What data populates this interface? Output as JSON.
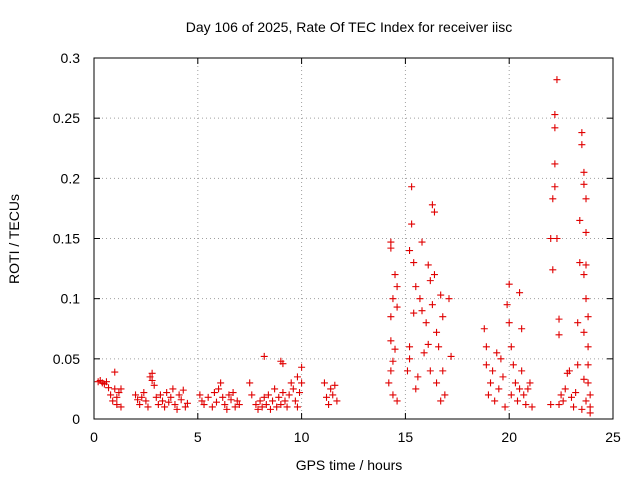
{
  "chart_data": {
    "type": "scatter",
    "title": "Day 106 of 2025, Rate Of TEC Index for receiver iisc",
    "xlabel": "GPS time / hours",
    "ylabel": "ROTI / TECUs",
    "xlim": [
      0,
      25
    ],
    "ylim": [
      0,
      0.3
    ],
    "x_ticks": [
      0,
      5,
      10,
      15,
      20,
      25
    ],
    "x_tick_labels": [
      "0",
      "5",
      "10",
      "15",
      "20",
      "25"
    ],
    "y_ticks": [
      0,
      0.05,
      0.1,
      0.15,
      0.2,
      0.25,
      0.3
    ],
    "y_tick_labels": [
      "0",
      "0.05",
      "0.1",
      "0.15",
      "0.2",
      "0.25",
      "0.3"
    ],
    "grid": true,
    "marker": "+",
    "color": "#e00000",
    "series": [
      {
        "name": "ROTI",
        "points": [
          [
            0.2,
            0.031
          ],
          [
            0.3,
            0.032
          ],
          [
            0.4,
            0.03
          ],
          [
            0.5,
            0.029
          ],
          [
            0.6,
            0.031
          ],
          [
            0.7,
            0.026
          ],
          [
            0.8,
            0.02
          ],
          [
            0.9,
            0.015
          ],
          [
            1.0,
            0.025
          ],
          [
            1.0,
            0.039
          ],
          [
            1.1,
            0.018
          ],
          [
            1.1,
            0.012
          ],
          [
            1.2,
            0.022
          ],
          [
            1.3,
            0.01
          ],
          [
            1.3,
            0.025
          ],
          [
            2.0,
            0.02
          ],
          [
            2.1,
            0.016
          ],
          [
            2.2,
            0.012
          ],
          [
            2.3,
            0.018
          ],
          [
            2.4,
            0.022
          ],
          [
            2.5,
            0.015
          ],
          [
            2.6,
            0.01
          ],
          [
            2.7,
            0.035
          ],
          [
            2.8,
            0.038
          ],
          [
            2.8,
            0.032
          ],
          [
            2.9,
            0.028
          ],
          [
            3.0,
            0.018
          ],
          [
            3.1,
            0.012
          ],
          [
            3.2,
            0.02
          ],
          [
            3.3,
            0.015
          ],
          [
            3.4,
            0.01
          ],
          [
            3.5,
            0.022
          ],
          [
            3.6,
            0.014
          ],
          [
            3.7,
            0.018
          ],
          [
            3.8,
            0.025
          ],
          [
            3.9,
            0.012
          ],
          [
            4.0,
            0.008
          ],
          [
            4.1,
            0.02
          ],
          [
            4.2,
            0.016
          ],
          [
            4.3,
            0.024
          ],
          [
            4.4,
            0.01
          ],
          [
            4.5,
            0.013
          ],
          [
            5.1,
            0.02
          ],
          [
            5.2,
            0.015
          ],
          [
            5.3,
            0.012
          ],
          [
            5.5,
            0.018
          ],
          [
            5.7,
            0.01
          ],
          [
            5.8,
            0.022
          ],
          [
            5.9,
            0.014
          ],
          [
            6.0,
            0.025
          ],
          [
            6.1,
            0.03
          ],
          [
            6.2,
            0.018
          ],
          [
            6.3,
            0.012
          ],
          [
            6.4,
            0.008
          ],
          [
            6.5,
            0.02
          ],
          [
            6.6,
            0.016
          ],
          [
            6.7,
            0.022
          ],
          [
            6.8,
            0.01
          ],
          [
            6.9,
            0.015
          ],
          [
            7.0,
            0.012
          ],
          [
            7.5,
            0.03
          ],
          [
            7.6,
            0.02
          ],
          [
            7.8,
            0.012
          ],
          [
            7.9,
            0.008
          ],
          [
            8.0,
            0.015
          ],
          [
            8.1,
            0.01
          ],
          [
            8.2,
            0.018
          ],
          [
            8.2,
            0.052
          ],
          [
            8.3,
            0.012
          ],
          [
            8.4,
            0.02
          ],
          [
            8.5,
            0.008
          ],
          [
            8.6,
            0.015
          ],
          [
            8.7,
            0.025
          ],
          [
            8.8,
            0.01
          ],
          [
            8.9,
            0.018
          ],
          [
            9.0,
            0.012
          ],
          [
            9.0,
            0.048
          ],
          [
            9.1,
            0.046
          ],
          [
            9.1,
            0.022
          ],
          [
            9.2,
            0.015
          ],
          [
            9.3,
            0.01
          ],
          [
            9.4,
            0.02
          ],
          [
            9.5,
            0.03
          ],
          [
            9.6,
            0.025
          ],
          [
            9.7,
            0.015
          ],
          [
            9.8,
            0.01
          ],
          [
            9.8,
            0.035
          ],
          [
            9.9,
            0.022
          ],
          [
            10.0,
            0.03
          ],
          [
            10.0,
            0.043
          ],
          [
            11.1,
            0.03
          ],
          [
            11.2,
            0.018
          ],
          [
            11.3,
            0.012
          ],
          [
            11.4,
            0.025
          ],
          [
            11.5,
            0.02
          ],
          [
            11.6,
            0.028
          ],
          [
            11.7,
            0.015
          ],
          [
            14.2,
            0.03
          ],
          [
            14.3,
            0.04
          ],
          [
            14.3,
            0.065
          ],
          [
            14.3,
            0.085
          ],
          [
            14.3,
            0.142
          ],
          [
            14.3,
            0.147
          ],
          [
            14.4,
            0.02
          ],
          [
            14.4,
            0.048
          ],
          [
            14.4,
            0.1
          ],
          [
            14.5,
            0.058
          ],
          [
            14.5,
            0.12
          ],
          [
            14.6,
            0.015
          ],
          [
            14.6,
            0.093
          ],
          [
            14.6,
            0.11
          ],
          [
            15.1,
            0.04
          ],
          [
            15.2,
            0.06
          ],
          [
            15.2,
            0.14
          ],
          [
            15.2,
            0.05
          ],
          [
            15.3,
            0.193
          ],
          [
            15.3,
            0.162
          ],
          [
            15.4,
            0.13
          ],
          [
            15.4,
            0.088
          ],
          [
            15.5,
            0.11
          ],
          [
            15.5,
            0.025
          ],
          [
            15.6,
            0.035
          ],
          [
            15.7,
            0.1
          ],
          [
            15.8,
            0.09
          ],
          [
            15.8,
            0.147
          ],
          [
            15.9,
            0.055
          ],
          [
            16.0,
            0.08
          ],
          [
            16.1,
            0.128
          ],
          [
            16.1,
            0.062
          ],
          [
            16.2,
            0.115
          ],
          [
            16.2,
            0.04
          ],
          [
            16.3,
            0.095
          ],
          [
            16.3,
            0.178
          ],
          [
            16.4,
            0.172
          ],
          [
            16.4,
            0.12
          ],
          [
            16.5,
            0.072
          ],
          [
            16.5,
            0.03
          ],
          [
            16.6,
            0.06
          ],
          [
            16.7,
            0.103
          ],
          [
            16.7,
            0.015
          ],
          [
            16.8,
            0.085
          ],
          [
            16.8,
            0.04
          ],
          [
            16.9,
            0.02
          ],
          [
            17.1,
            0.1
          ],
          [
            17.2,
            0.052
          ],
          [
            18.8,
            0.075
          ],
          [
            18.9,
            0.06
          ],
          [
            18.9,
            0.045
          ],
          [
            19.0,
            0.02
          ],
          [
            19.1,
            0.03
          ],
          [
            19.2,
            0.04
          ],
          [
            19.3,
            0.015
          ],
          [
            19.4,
            0.055
          ],
          [
            19.5,
            0.025
          ],
          [
            19.6,
            0.05
          ],
          [
            19.7,
            0.035
          ],
          [
            19.8,
            0.01
          ],
          [
            19.9,
            0.095
          ],
          [
            20.0,
            0.112
          ],
          [
            20.0,
            0.08
          ],
          [
            20.1,
            0.06
          ],
          [
            20.1,
            0.02
          ],
          [
            20.2,
            0.045
          ],
          [
            20.3,
            0.03
          ],
          [
            20.4,
            0.015
          ],
          [
            20.5,
            0.025
          ],
          [
            20.5,
            0.105
          ],
          [
            20.6,
            0.075
          ],
          [
            20.6,
            0.04
          ],
          [
            20.7,
            0.02
          ],
          [
            20.8,
            0.012
          ],
          [
            20.9,
            0.025
          ],
          [
            21.0,
            0.03
          ],
          [
            21.1,
            0.01
          ],
          [
            22.0,
            0.012
          ],
          [
            22.0,
            0.15
          ],
          [
            22.1,
            0.183
          ],
          [
            22.1,
            0.124
          ],
          [
            22.2,
            0.212
          ],
          [
            22.2,
            0.193
          ],
          [
            22.2,
            0.242
          ],
          [
            22.2,
            0.253
          ],
          [
            22.3,
            0.282
          ],
          [
            22.3,
            0.15
          ],
          [
            22.4,
            0.083
          ],
          [
            22.4,
            0.07
          ],
          [
            22.4,
            0.012
          ],
          [
            22.5,
            0.02
          ],
          [
            22.6,
            0.015
          ],
          [
            22.7,
            0.025
          ],
          [
            22.8,
            0.038
          ],
          [
            22.9,
            0.04
          ],
          [
            23.0,
            0.018
          ],
          [
            23.1,
            0.01
          ],
          [
            23.2,
            0.022
          ],
          [
            23.3,
            0.045
          ],
          [
            23.3,
            0.08
          ],
          [
            23.4,
            0.13
          ],
          [
            23.4,
            0.165
          ],
          [
            23.5,
            0.238
          ],
          [
            23.5,
            0.228
          ],
          [
            23.6,
            0.205
          ],
          [
            23.6,
            0.195
          ],
          [
            23.6,
            0.12
          ],
          [
            23.6,
            0.072
          ],
          [
            23.7,
            0.183
          ],
          [
            23.7,
            0.155
          ],
          [
            23.7,
            0.128
          ],
          [
            23.7,
            0.1
          ],
          [
            23.8,
            0.085
          ],
          [
            23.8,
            0.06
          ],
          [
            23.8,
            0.045
          ],
          [
            23.8,
            0.03
          ],
          [
            23.9,
            0.02
          ],
          [
            23.9,
            0.01
          ],
          [
            23.9,
            0.005
          ],
          [
            23.7,
            0.015
          ],
          [
            23.5,
            0.008
          ],
          [
            23.6,
            0.033
          ]
        ]
      }
    ]
  }
}
